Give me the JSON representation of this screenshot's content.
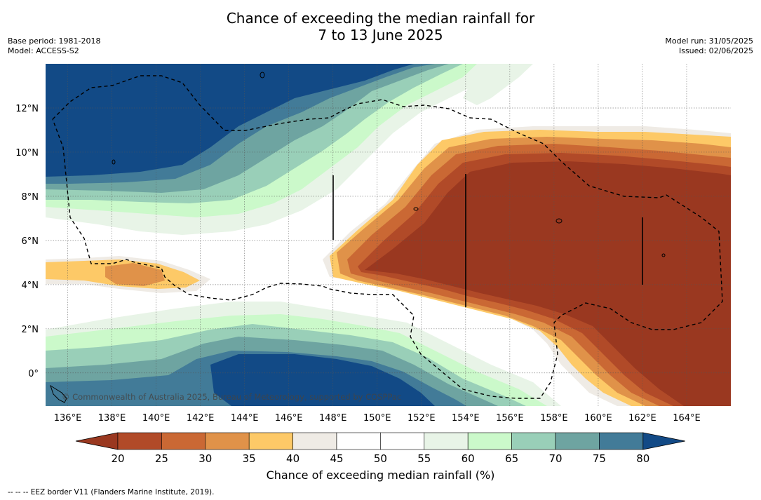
{
  "title": {
    "line1": "Chance of exceeding the median rainfall for",
    "line2": "7 to 13 June 2025"
  },
  "meta_left": {
    "base_period": "Base period: 1981-2018",
    "model": "Model: ACCESS-S2"
  },
  "meta_right": {
    "model_run": "Model run: 31/05/2025",
    "issued": "Issued: 02/06/2025"
  },
  "map": {
    "lon_range": [
      135,
      166
    ],
    "lat_range": [
      -1.5,
      14
    ],
    "lat_ticks": [
      {
        "value": 12,
        "label": "12°N"
      },
      {
        "value": 10,
        "label": "10°N"
      },
      {
        "value": 8,
        "label": "8°N"
      },
      {
        "value": 6,
        "label": "6°N"
      },
      {
        "value": 4,
        "label": "4°N"
      },
      {
        "value": 2,
        "label": "2°N"
      },
      {
        "value": 0,
        "label": "0°"
      }
    ],
    "lon_ticks": [
      {
        "value": 136,
        "label": "136°E"
      },
      {
        "value": 138,
        "label": "138°E"
      },
      {
        "value": 140,
        "label": "140°E"
      },
      {
        "value": 142,
        "label": "142°E"
      },
      {
        "value": 144,
        "label": "144°E"
      },
      {
        "value": 146,
        "label": "146°E"
      },
      {
        "value": 148,
        "label": "148°E"
      },
      {
        "value": 150,
        "label": "150°E"
      },
      {
        "value": 152,
        "label": "152°E"
      },
      {
        "value": 154,
        "label": "154°E"
      },
      {
        "value": 156,
        "label": "156°E"
      },
      {
        "value": 158,
        "label": "158°E"
      },
      {
        "value": 160,
        "label": "160°E"
      },
      {
        "value": 162,
        "label": "162°E"
      },
      {
        "value": 164,
        "label": "164°E"
      }
    ],
    "copyright": "© Commonwealth of Australia 2025, Bureau of Meteorology, supported by COSPPac",
    "gridlines": true
  },
  "colorbar": {
    "label": "Chance of exceeding median rainfall (%)",
    "ticks": [
      "20",
      "25",
      "30",
      "35",
      "40",
      "45",
      "50",
      "55",
      "60",
      "65",
      "70",
      "75",
      "80"
    ],
    "colors": [
      "#9a3820",
      "#b14a28",
      "#ca6834",
      "#e09249",
      "#fdc967",
      "#efebe5",
      "#ffffff",
      "#ffffff",
      "#e8f4e7",
      "#cbf9ca",
      "#99cfb8",
      "#6ea4a1",
      "#427b98",
      "#124a86"
    ]
  },
  "footnote": "--  --  -- EEZ border V11 (Flanders Marine Institute, 2019)."
}
